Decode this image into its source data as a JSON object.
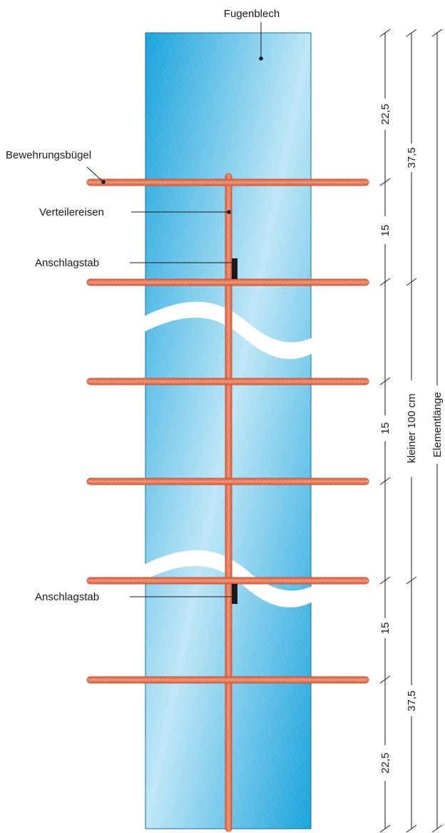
{
  "labels": {
    "sheet": "Fugenblech",
    "stirrup": "Bewehrungsbügel",
    "distribution_bar": "Verteilereisen",
    "stop_bar_top": "Anschlagstab",
    "stop_bar_bottom": "Anschlagstab"
  },
  "dimensions": {
    "top_end": "22,5",
    "top_first": "15",
    "middle": "15",
    "bottom_first": "15",
    "bottom_end": "22,5",
    "top_total": "37,5",
    "bottom_total": "37,5",
    "group": "kleiner 100 cm",
    "element": "Elementlänge"
  },
  "colors": {
    "sheet": "#1aa3dc",
    "sheet_light": "#bfe6f6",
    "rebar": "#ef7a5a",
    "rebar_edge": "#c8563a",
    "stop_bar": "#1a1a1a"
  }
}
